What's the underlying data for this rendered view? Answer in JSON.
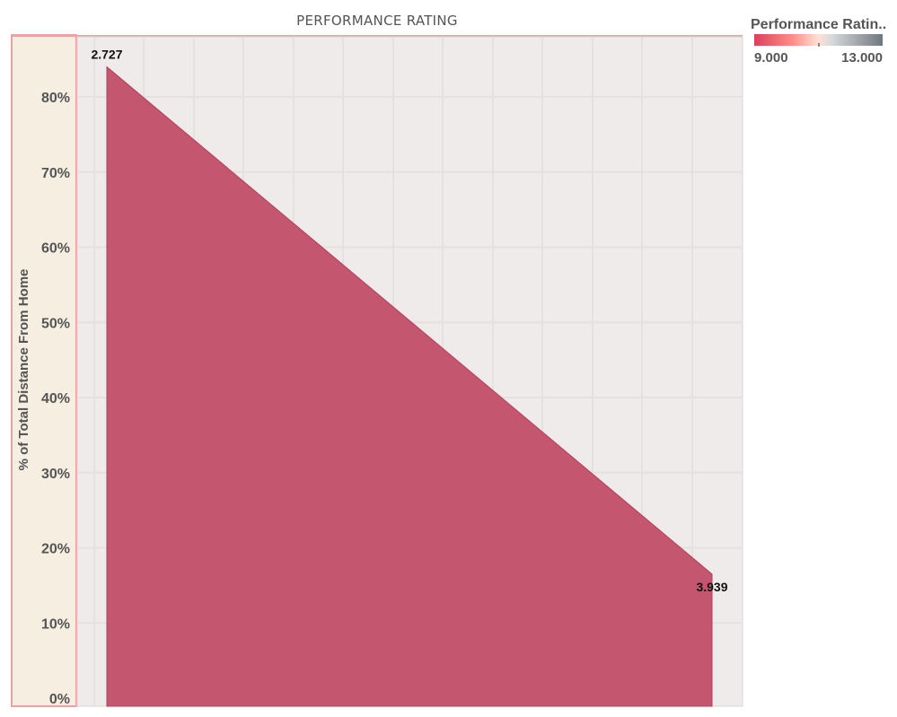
{
  "colors": {
    "area_fill": "#c5566f",
    "area_stroke": "#b0405c",
    "plot_background": "#efebea",
    "gridline": "#e4e1e0",
    "axis_pane_background": "#f6eee0",
    "axis_pane_border": "#f0a0a0",
    "legend_gradient": [
      "#dc3f5c",
      "#ff8e86",
      "#ffe0d6",
      "#d8dadc",
      "#6f777f"
    ]
  },
  "legend": {
    "title": "Performance Ratin..",
    "min_label": "9.000",
    "max_label": "13.000",
    "placement": "top-right"
  },
  "chart_data": {
    "type": "area",
    "title": "PERFORMANCE RATING",
    "xlabel": "",
    "ylabel": "% of Total Distance From Home",
    "x": [
      3,
      4
    ],
    "y": [
      84,
      16.5
    ],
    "point_labels": [
      "2.727",
      "3.939"
    ],
    "xlim": [
      2.95,
      4.05
    ],
    "ylim": [
      0,
      88
    ],
    "yticks": [
      0,
      10,
      20,
      30,
      40,
      50,
      60,
      70,
      80
    ],
    "ytick_labels": [
      "0%",
      "10%",
      "20%",
      "30%",
      "40%",
      "50%",
      "60%",
      "70%",
      "80%"
    ],
    "grid": true
  }
}
